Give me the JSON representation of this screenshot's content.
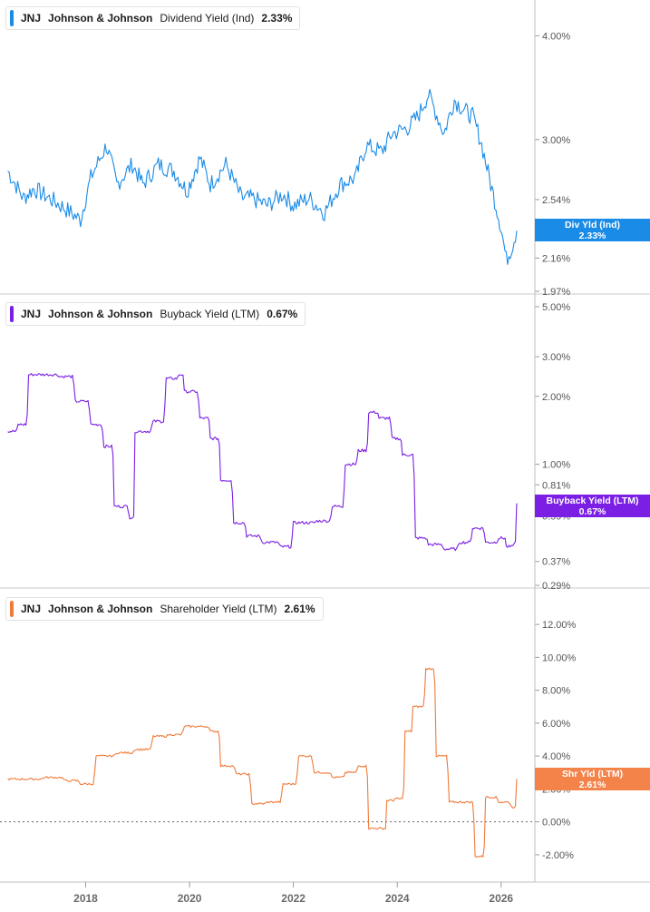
{
  "chart_data": [
    {
      "type": "line",
      "ticker": "JNJ",
      "company": "Johnson & Johnson",
      "metric": "Dividend Yield (Ind)",
      "current_value": "2.33%",
      "tag_label": "Div Yld (Ind)",
      "tag_value": "2.33%",
      "color": "#1a8be6",
      "scale": "log",
      "ylim": [
        1.97,
        4.2
      ],
      "yticks": [
        "4.00%",
        "3.00%",
        "2.54%",
        "2.16%",
        "1.97%"
      ],
      "ytick_values": [
        4.0,
        3.0,
        2.54,
        2.16,
        1.97
      ],
      "x": [
        2016.5,
        2016.8,
        2017.0,
        2017.3,
        2017.6,
        2017.9,
        2018.1,
        2018.4,
        2018.6,
        2018.9,
        2019.1,
        2019.4,
        2019.7,
        2019.95,
        2020.2,
        2020.4,
        2020.7,
        2021.0,
        2021.2,
        2021.5,
        2021.8,
        2022.0,
        2022.3,
        2022.6,
        2022.9,
        2023.2,
        2023.4,
        2023.7,
        2023.9,
        2024.2,
        2024.4,
        2024.6,
        2024.9,
        2025.1,
        2025.3,
        2025.45,
        2025.6,
        2025.8,
        2026.0,
        2026.1,
        2026.2,
        2026.3
      ],
      "values": [
        2.75,
        2.55,
        2.62,
        2.55,
        2.48,
        2.4,
        2.7,
        2.95,
        2.65,
        2.8,
        2.65,
        2.8,
        2.75,
        2.6,
        2.85,
        2.65,
        2.8,
        2.55,
        2.55,
        2.5,
        2.58,
        2.5,
        2.55,
        2.45,
        2.65,
        2.7,
        2.95,
        2.9,
        3.05,
        3.1,
        3.2,
        3.4,
        3.05,
        3.35,
        3.25,
        3.2,
        3.0,
        2.65,
        2.35,
        2.15,
        2.22,
        2.33
      ]
    },
    {
      "type": "line",
      "ticker": "JNJ",
      "company": "Johnson & Johnson",
      "metric": "Buyback Yield (LTM)",
      "current_value": "0.67%",
      "tag_label": "Buyback Yield (LTM)",
      "tag_value": "0.67%",
      "color": "#7b1fe4",
      "scale": "log",
      "ylim": [
        0.29,
        5.0
      ],
      "yticks": [
        "5.00%",
        "3.00%",
        "2.00%",
        "1.00%",
        "0.81%",
        "0.59%",
        "0.37%",
        "0.29%"
      ],
      "ytick_values": [
        5.0,
        3.0,
        2.0,
        1.0,
        0.81,
        0.59,
        0.37,
        0.29
      ],
      "x": [
        2016.5,
        2016.7,
        2016.9,
        2017.2,
        2017.5,
        2017.8,
        2018.1,
        2018.35,
        2018.55,
        2018.85,
        2018.95,
        2019.3,
        2019.55,
        2019.8,
        2019.9,
        2020.2,
        2020.4,
        2020.6,
        2020.85,
        2021.1,
        2021.4,
        2021.75,
        2022.0,
        2022.2,
        2022.45,
        2022.75,
        2023.0,
        2023.25,
        2023.45,
        2023.65,
        2023.9,
        2024.1,
        2024.35,
        2024.6,
        2024.9,
        2025.2,
        2025.45,
        2025.7,
        2025.95,
        2026.1,
        2026.25,
        2026.3
      ],
      "values": [
        1.4,
        1.5,
        2.5,
        2.5,
        2.45,
        1.9,
        1.5,
        1.2,
        0.65,
        0.58,
        1.4,
        1.55,
        2.4,
        2.5,
        2.1,
        1.6,
        1.3,
        0.85,
        0.55,
        0.48,
        0.45,
        0.43,
        0.55,
        0.55,
        0.56,
        0.65,
        1.0,
        1.15,
        1.7,
        1.6,
        1.3,
        1.1,
        0.47,
        0.44,
        0.42,
        0.45,
        0.52,
        0.45,
        0.47,
        0.43,
        0.45,
        0.67
      ]
    },
    {
      "type": "line",
      "ticker": "JNJ",
      "company": "Johnson & Johnson",
      "metric": "Shareholder Yield (LTM)",
      "current_value": "2.61%",
      "tag_label": "Shr Yld (LTM)",
      "tag_value": "2.61%",
      "color": "#f07a3a",
      "scale": "linear",
      "ylim": [
        -3.0,
        13.0
      ],
      "yticks": [
        "12.00%",
        "10.00%",
        "8.00%",
        "6.00%",
        "4.00%",
        "2.00%",
        "0.00%",
        "-2.00%"
      ],
      "ytick_values": [
        12,
        10,
        8,
        6,
        4,
        2,
        0,
        -2
      ],
      "zero_line": true,
      "x": [
        2016.5,
        2016.8,
        2017.2,
        2017.6,
        2017.9,
        2018.2,
        2018.6,
        2018.95,
        2019.3,
        2019.6,
        2019.9,
        2020.15,
        2020.4,
        2020.6,
        2020.9,
        2021.2,
        2021.5,
        2021.8,
        2022.1,
        2022.4,
        2022.75,
        2023.0,
        2023.25,
        2023.45,
        2023.65,
        2023.8,
        2023.95,
        2024.15,
        2024.3,
        2024.55,
        2024.75,
        2025.0,
        2025.25,
        2025.5,
        2025.7,
        2025.95,
        2026.2,
        2026.3
      ],
      "values": [
        2.6,
        2.6,
        2.7,
        2.5,
        2.3,
        4.0,
        4.2,
        4.4,
        5.2,
        5.3,
        5.8,
        5.8,
        5.5,
        3.4,
        2.9,
        1.1,
        1.2,
        2.3,
        4.0,
        3.0,
        2.7,
        3.0,
        3.4,
        -0.4,
        -0.4,
        1.3,
        1.4,
        5.5,
        7.0,
        9.3,
        4.0,
        1.2,
        1.2,
        -2.1,
        1.5,
        1.2,
        0.9,
        2.61
      ]
    }
  ],
  "x_axis": {
    "ticks": [
      "2018",
      "2020",
      "2022",
      "2024",
      "2026"
    ],
    "tick_values": [
      2018,
      2020,
      2022,
      2024,
      2026
    ],
    "range": [
      2016.35,
      2026.65
    ]
  },
  "colors": {
    "axis": "#bfbfbf",
    "tick_text": "#555555",
    "background": "#ffffff"
  }
}
